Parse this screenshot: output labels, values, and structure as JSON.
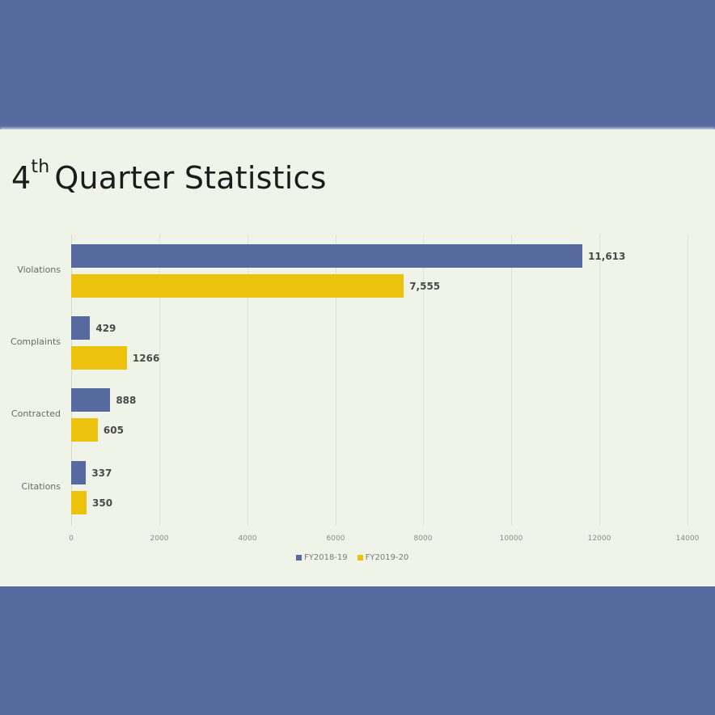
{
  "slide": {
    "title_number": "4",
    "title_superscript": "th",
    "title_text": "Quarter Statistics"
  },
  "colors": {
    "background_band": "#566a9f",
    "slide_background": "#f0f3e8",
    "series_1": "#566a9f",
    "series_2": "#ecc30c"
  },
  "chart_data": {
    "type": "bar",
    "orientation": "horizontal",
    "title": "4th Quarter Statistics",
    "xlabel": "",
    "ylabel": "",
    "categories": [
      "Violations",
      "Complaints",
      "Contracted",
      "Citations"
    ],
    "series": [
      {
        "name": "FY2018-19",
        "color": "#566a9f",
        "values": [
          11613,
          429,
          888,
          337
        ],
        "labels": [
          "11,613",
          "429",
          "888",
          "337"
        ]
      },
      {
        "name": "FY2019-20",
        "color": "#ecc30c",
        "values": [
          7555,
          1266,
          605,
          350
        ],
        "labels": [
          "7,555",
          "1266",
          "605",
          "350"
        ]
      }
    ],
    "xlim": [
      0,
      14000
    ],
    "xticks": [
      "0",
      "2000",
      "4000",
      "6000",
      "8000",
      "10000",
      "12000",
      "14000"
    ],
    "grid": true,
    "legend_position": "bottom"
  }
}
